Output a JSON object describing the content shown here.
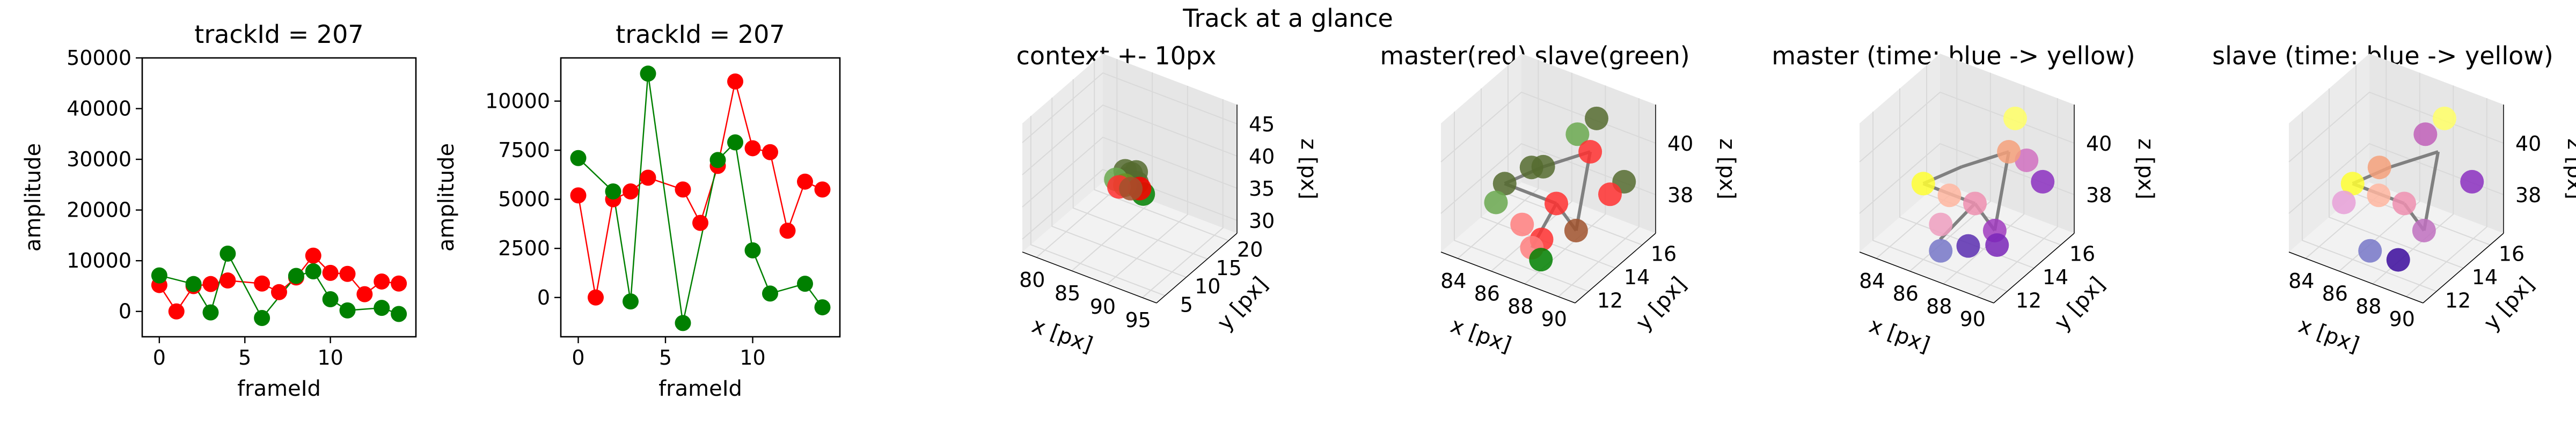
{
  "figure_title": "Track at a glance",
  "colors": {
    "master": "#ff0000",
    "slave": "#008000",
    "olive": "#556b2f",
    "link": "#808080",
    "time_start": "#3b2fb5",
    "time_mid": "#e377c2",
    "time_end": "#ffff33"
  },
  "chart_data": [
    {
      "type": "line",
      "title": "trackId = 207",
      "xlabel": "frameId",
      "ylabel": "amplitude",
      "xlim": [
        -1,
        15
      ],
      "ylim": [
        -5000,
        50000
      ],
      "xticks": [
        0,
        5,
        10
      ],
      "yticks": [
        0,
        10000,
        20000,
        30000,
        40000,
        50000
      ],
      "series": [
        {
          "role": "master",
          "color": "#ff0000",
          "x": [
            0,
            1,
            2,
            3,
            4,
            6,
            7,
            8,
            9,
            10,
            11,
            12,
            13,
            14
          ],
          "y": [
            5200,
            0,
            5000,
            5400,
            6100,
            5500,
            3800,
            6700,
            11000,
            7600,
            7400,
            3400,
            5900,
            5500
          ]
        },
        {
          "role": "slave",
          "color": "#008000",
          "x": [
            0,
            2,
            3,
            4,
            6,
            8,
            9,
            10,
            11,
            13,
            14
          ],
          "y": [
            7100,
            5400,
            -200,
            11400,
            -1300,
            7000,
            7900,
            2400,
            200,
            700,
            -500
          ]
        }
      ]
    },
    {
      "type": "line",
      "title": "trackId = 207",
      "xlabel": "frameId",
      "ylabel": "amplitude",
      "xlim": [
        -1,
        15
      ],
      "ylim": [
        -2000,
        12200
      ],
      "xticks": [
        0,
        5,
        10
      ],
      "yticks": [
        0,
        2500,
        5000,
        7500,
        10000
      ],
      "series": [
        {
          "role": "master",
          "color": "#ff0000",
          "x": [
            0,
            1,
            2,
            3,
            4,
            6,
            7,
            8,
            9,
            10,
            11,
            12,
            13,
            14
          ],
          "y": [
            5200,
            0,
            5000,
            5400,
            6100,
            5500,
            3800,
            6700,
            11000,
            7600,
            7400,
            3400,
            5900,
            5500
          ]
        },
        {
          "role": "slave",
          "color": "#008000",
          "x": [
            0,
            2,
            3,
            4,
            6,
            8,
            9,
            10,
            11,
            13,
            14
          ],
          "y": [
            7100,
            5400,
            -200,
            11400,
            -1300,
            7000,
            7900,
            2400,
            200,
            700,
            -500
          ]
        }
      ]
    },
    {
      "type": "scatter",
      "title": "context +- 10px",
      "xlabel": "x [px]",
      "ylabel": "y [px]",
      "zlabel": "z [px]",
      "xlim": [
        78,
        97
      ],
      "ylim": [
        3,
        22
      ],
      "zlim": [
        28,
        48
      ],
      "xticks": [
        80,
        85,
        90,
        95
      ],
      "yticks": [
        5,
        10,
        15,
        20
      ],
      "zticks": [
        30,
        35,
        40,
        45
      ],
      "points": [
        {
          "x": 86.8,
          "y": 12.6,
          "z": 37.5,
          "color": "#556b2f"
        },
        {
          "x": 87.4,
          "y": 13.0,
          "z": 38.4,
          "color": "#556b2f"
        },
        {
          "x": 88.0,
          "y": 13.2,
          "z": 38.8,
          "color": "#556b2f"
        },
        {
          "x": 86.2,
          "y": 13.6,
          "z": 38.0,
          "color": "#556b2f"
        },
        {
          "x": 88.6,
          "y": 12.4,
          "z": 37.8,
          "color": "#556b2f"
        },
        {
          "x": 85.6,
          "y": 12.4,
          "z": 37.1,
          "color": "#6aa84f"
        },
        {
          "x": 86.4,
          "y": 11.8,
          "z": 36.6,
          "color": "#ff3030"
        },
        {
          "x": 88.2,
          "y": 11.6,
          "z": 37.2,
          "color": "#a0522d"
        },
        {
          "x": 89.2,
          "y": 12.0,
          "z": 37.4,
          "color": "#ff0000"
        },
        {
          "x": 89.6,
          "y": 12.2,
          "z": 36.6,
          "color": "#008000"
        },
        {
          "x": 87.0,
          "y": 12.2,
          "z": 36.9,
          "color": "#6b8e23"
        }
      ]
    },
    {
      "type": "scatter",
      "title": "master(red) slave(green)",
      "xlabel": "x [px]",
      "ylabel": "y [px]",
      "zlabel": "z [px]",
      "xlim": [
        83,
        91
      ],
      "ylim": [
        11,
        17
      ],
      "zlim": [
        36.5,
        41.5
      ],
      "xticks": [
        84,
        86,
        88,
        90
      ],
      "yticks": [
        12,
        14,
        16
      ],
      "zticks": [
        38,
        40
      ],
      "points": [
        {
          "x": 88.6,
          "y": 15.6,
          "z": 41.0,
          "color": "#556b2f"
        },
        {
          "x": 87.7,
          "y": 15.3,
          "z": 40.3,
          "color": "#6aa84f"
        },
        {
          "x": 88.7,
          "y": 15.0,
          "z": 40.0,
          "color": "#ff3030"
        },
        {
          "x": 86.4,
          "y": 13.5,
          "z": 39.5,
          "color": "#556b2f"
        },
        {
          "x": 87.1,
          "y": 13.5,
          "z": 39.7,
          "color": "#556b2f"
        },
        {
          "x": 90.8,
          "y": 14.9,
          "z": 39.4,
          "color": "#556b2f"
        },
        {
          "x": 85.2,
          "y": 13.0,
          "z": 38.8,
          "color": "#556b2f"
        },
        {
          "x": 87.8,
          "y": 13.6,
          "z": 38.4,
          "color": "#ff3030"
        },
        {
          "x": 85.0,
          "y": 12.6,
          "z": 38.2,
          "color": "#6aa84f"
        },
        {
          "x": 89.3,
          "y": 13.2,
          "z": 37.9,
          "color": "#a0522d"
        },
        {
          "x": 86.4,
          "y": 12.8,
          "z": 37.6,
          "color": "#ff7f7f"
        },
        {
          "x": 87.8,
          "y": 12.5,
          "z": 37.5,
          "color": "#ff3030"
        },
        {
          "x": 87.3,
          "y": 12.4,
          "z": 37.1,
          "color": "#ff7f7f"
        },
        {
          "x": 88.0,
          "y": 12.2,
          "z": 36.9,
          "color": "#008000"
        },
        {
          "x": 90.2,
          "y": 14.6,
          "z": 38.9,
          "color": "#ff3030"
        }
      ],
      "links": [
        [
          {
            "x": 88.7,
            "y": 15.0,
            "z": 40.0
          },
          {
            "x": 87.1,
            "y": 13.5,
            "z": 39.7
          }
        ],
        [
          {
            "x": 87.1,
            "y": 13.5,
            "z": 39.7
          },
          {
            "x": 85.2,
            "y": 13.0,
            "z": 38.8
          }
        ],
        [
          {
            "x": 85.2,
            "y": 13.0,
            "z": 38.8
          },
          {
            "x": 87.8,
            "y": 13.6,
            "z": 38.4
          }
        ],
        [
          {
            "x": 87.8,
            "y": 13.6,
            "z": 38.4
          },
          {
            "x": 89.3,
            "y": 13.2,
            "z": 37.9
          }
        ],
        [
          {
            "x": 88.7,
            "y": 15.0,
            "z": 40.0
          },
          {
            "x": 89.3,
            "y": 13.2,
            "z": 37.9
          }
        ],
        [
          {
            "x": 87.8,
            "y": 13.6,
            "z": 38.4
          },
          {
            "x": 87.3,
            "y": 12.4,
            "z": 37.1
          }
        ]
      ]
    },
    {
      "type": "scatter",
      "title": "master (time: blue -> yellow)",
      "xlabel": "x [px]",
      "ylabel": "y [px]",
      "zlabel": "z [px]",
      "xlim": [
        83,
        91
      ],
      "ylim": [
        11,
        17
      ],
      "zlim": [
        36.5,
        41.5
      ],
      "xticks": [
        84,
        86,
        88,
        90
      ],
      "yticks": [
        12,
        14,
        16
      ],
      "zticks": [
        38,
        40
      ],
      "points": [
        {
          "x": 88.6,
          "y": 15.6,
          "z": 41.0,
          "color": "#ffff66"
        },
        {
          "x": 88.7,
          "y": 15.0,
          "z": 40.0,
          "color": "#f4a07a"
        },
        {
          "x": 89.6,
          "y": 15.2,
          "z": 39.8,
          "color": "#d070c0"
        },
        {
          "x": 90.8,
          "y": 14.9,
          "z": 39.4,
          "color": "#8b2fc0"
        },
        {
          "x": 85.2,
          "y": 13.0,
          "z": 38.8,
          "color": "#ffff33"
        },
        {
          "x": 86.6,
          "y": 13.2,
          "z": 38.6,
          "color": "#ffb6a0"
        },
        {
          "x": 87.8,
          "y": 13.6,
          "z": 38.4,
          "color": "#ef8fb0"
        },
        {
          "x": 89.3,
          "y": 13.2,
          "z": 37.9,
          "color": "#a13cc0"
        },
        {
          "x": 89.6,
          "y": 13.0,
          "z": 37.5,
          "color": "#7a26b8"
        },
        {
          "x": 86.4,
          "y": 12.8,
          "z": 37.6,
          "color": "#ef9fc0"
        },
        {
          "x": 88.2,
          "y": 12.6,
          "z": 37.3,
          "color": "#5a2eb0"
        },
        {
          "x": 86.8,
          "y": 12.3,
          "z": 36.9,
          "color": "#7777c8"
        }
      ],
      "links": [
        [
          {
            "x": 88.7,
            "y": 15.0,
            "z": 40.0
          },
          {
            "x": 87.1,
            "y": 13.5,
            "z": 39.7
          }
        ],
        [
          {
            "x": 87.1,
            "y": 13.5,
            "z": 39.7
          },
          {
            "x": 85.2,
            "y": 13.0,
            "z": 38.8
          }
        ],
        [
          {
            "x": 85.2,
            "y": 13.0,
            "z": 38.8
          },
          {
            "x": 87.8,
            "y": 13.6,
            "z": 38.4
          }
        ],
        [
          {
            "x": 87.8,
            "y": 13.6,
            "z": 38.4
          },
          {
            "x": 89.3,
            "y": 13.2,
            "z": 37.9
          }
        ],
        [
          {
            "x": 88.7,
            "y": 15.0,
            "z": 40.0
          },
          {
            "x": 89.3,
            "y": 13.2,
            "z": 37.9
          }
        ],
        [
          {
            "x": 87.8,
            "y": 13.6,
            "z": 38.4
          },
          {
            "x": 86.6,
            "y": 12.5,
            "z": 37.2
          }
        ]
      ]
    },
    {
      "type": "scatter",
      "title": "slave (time: blue -> yellow)",
      "xlabel": "x [px]",
      "ylabel": "y [px]",
      "zlabel": "z [px]",
      "xlim": [
        83,
        91
      ],
      "ylim": [
        11,
        17
      ],
      "zlim": [
        36.5,
        41.5
      ],
      "xticks": [
        84,
        86,
        88,
        90
      ],
      "yticks": [
        12,
        14,
        16
      ],
      "zticks": [
        38,
        40
      ],
      "points": [
        {
          "x": 88.6,
          "y": 15.6,
          "z": 41.0,
          "color": "#ffff66"
        },
        {
          "x": 87.7,
          "y": 15.3,
          "z": 40.3,
          "color": "#c05fb8"
        },
        {
          "x": 86.4,
          "y": 13.5,
          "z": 39.5,
          "color": "#f4a07a"
        },
        {
          "x": 90.8,
          "y": 14.9,
          "z": 39.4,
          "color": "#8b2fc0"
        },
        {
          "x": 85.2,
          "y": 13.0,
          "z": 38.8,
          "color": "#ffff33"
        },
        {
          "x": 86.6,
          "y": 13.2,
          "z": 38.6,
          "color": "#ffb6a0"
        },
        {
          "x": 87.8,
          "y": 13.6,
          "z": 38.4,
          "color": "#ef8fb0"
        },
        {
          "x": 85.0,
          "y": 12.6,
          "z": 38.2,
          "color": "#e8a0d8"
        },
        {
          "x": 89.3,
          "y": 13.2,
          "z": 37.9,
          "color": "#c070c0"
        },
        {
          "x": 86.8,
          "y": 12.3,
          "z": 36.9,
          "color": "#7777c8"
        },
        {
          "x": 88.4,
          "y": 12.4,
          "z": 36.9,
          "color": "#3b0a9c"
        }
      ],
      "links": [
        [
          {
            "x": 88.7,
            "y": 15.0,
            "z": 40.0
          },
          {
            "x": 87.1,
            "y": 13.5,
            "z": 39.7
          }
        ],
        [
          {
            "x": 87.1,
            "y": 13.5,
            "z": 39.7
          },
          {
            "x": 85.2,
            "y": 13.0,
            "z": 38.8
          }
        ],
        [
          {
            "x": 85.2,
            "y": 13.0,
            "z": 38.8
          },
          {
            "x": 87.8,
            "y": 13.6,
            "z": 38.4
          }
        ],
        [
          {
            "x": 87.8,
            "y": 13.6,
            "z": 38.4
          },
          {
            "x": 89.3,
            "y": 13.2,
            "z": 37.9
          }
        ],
        [
          {
            "x": 88.7,
            "y": 15.0,
            "z": 40.0
          },
          {
            "x": 89.3,
            "y": 13.2,
            "z": 37.9
          }
        ]
      ]
    }
  ]
}
